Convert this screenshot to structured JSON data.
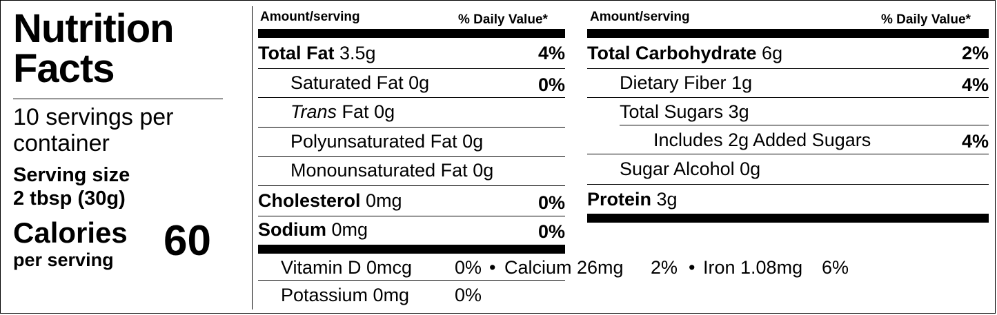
{
  "title_line1": "Nutrition",
  "title_line2": "Facts",
  "servings_line1": "10 servings per",
  "servings_line2": "container",
  "serving_size_label": "Serving size",
  "serving_size_value": "2 tbsp (30g)",
  "calories_label": "Calories",
  "calories_sub": "per serving",
  "calories_value": "60",
  "header": {
    "amount": "Amount/serving",
    "dv": "% Daily Value*"
  },
  "left_rows": [
    {
      "name": "Total Fat",
      "amount": "3.5g",
      "dv": "4%"
    },
    {
      "name": "Saturated Fat",
      "amount": "0g",
      "dv": "0%"
    },
    {
      "name_italic": "Trans",
      "name": "Fat",
      "amount": "0g",
      "dv": ""
    },
    {
      "name": "Polyunsaturated Fat",
      "amount": "0g",
      "dv": ""
    },
    {
      "name": "Monounsaturated Fat",
      "amount": "0g",
      "dv": ""
    },
    {
      "name": "Cholesterol",
      "amount": "0mg",
      "dv": "0%"
    },
    {
      "name": "Sodium",
      "amount": "0mg",
      "dv": "0%"
    }
  ],
  "right_rows": [
    {
      "name": "Total Carbohydrate",
      "amount": "6g",
      "dv": "2%"
    },
    {
      "name": "Dietary Fiber",
      "amount": "1g",
      "dv": "4%"
    },
    {
      "name": "Total Sugars",
      "amount": "3g",
      "dv": ""
    },
    {
      "name": "Includes 2g Added Sugars",
      "amount": "",
      "dv": "4%"
    },
    {
      "name": "Sugar Alcohol",
      "amount": "0g",
      "dv": ""
    },
    {
      "name": "Protein",
      "amount": "3g",
      "dv": ""
    }
  ],
  "vitamins": {
    "vitd": "Vitamin D 0mcg",
    "vitd_dv": "0%",
    "bullet": "•",
    "calcium": "Calcium 26mg",
    "calcium_dv": "2%",
    "iron": "Iron 1.08mg",
    "iron_dv": "6%",
    "potassium": "Potassium 0mg",
    "potassium_dv": "0%"
  }
}
